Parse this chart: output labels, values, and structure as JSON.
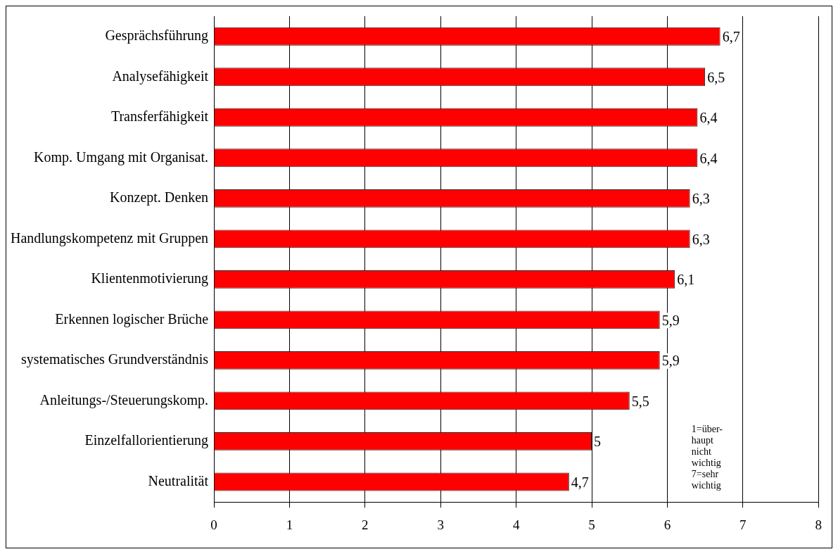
{
  "chart_data": {
    "type": "bar",
    "orientation": "horizontal",
    "categories": [
      "Gesprächsführung",
      "Analysefähigkeit",
      "Transferfähigkeit",
      "Komp. Umgang mit Organisat.",
      "Konzept. Denken",
      "Handlungskompetenz mit Gruppen",
      "Klientenmotivierung",
      "Erkennen logischer Brüche",
      "systematisches Grundverständnis",
      "Anleitungs-/Steuerungskomp.",
      "Einzelfallorientierung",
      "Neutralität"
    ],
    "values": [
      6.7,
      6.5,
      6.4,
      6.4,
      6.3,
      6.3,
      6.1,
      5.9,
      5.9,
      5.5,
      5,
      4.7
    ],
    "value_labels": [
      "6,7",
      "6,5",
      "6,4",
      "6,4",
      "6,3",
      "6,3",
      "6,1",
      "5,9",
      "5,9",
      "5,5",
      "5",
      "4,7"
    ],
    "color": "#ff0000",
    "xlim": [
      0,
      8
    ],
    "xticks": [
      0,
      1,
      2,
      3,
      4,
      5,
      6,
      7,
      8
    ],
    "grid": "x",
    "legend": false,
    "annotations": [
      "1=über-haupt nicht wichtig 7=sehr wichtig"
    ]
  }
}
